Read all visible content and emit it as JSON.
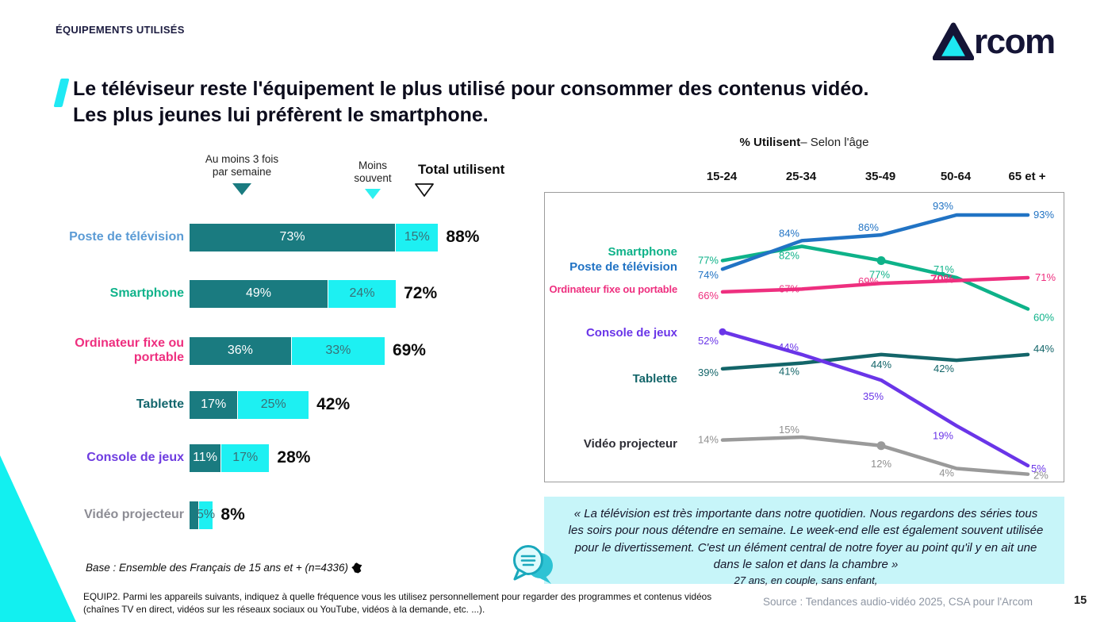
{
  "page": {
    "kicker": "ÉQUIPEMENTS UTILISÉS",
    "logo_text": "Arcom",
    "title_line1": "Le téléviseur reste l'équipement le plus utilisé pour consommer des contenus vidéo.",
    "title_line2": "Les plus jeunes lui préfèrent le smartphone.",
    "base_note": "Base : Ensemble des Français de 15 ans et + (n=4336)",
    "question": "EQUIP2. Parmi les appareils suivants, indiquez à quelle fréquence vous les utilisez personnellement pour regarder des programmes et contenus vidéos (chaînes TV en direct, vidéos sur les réseaux sociaux ou YouTube, vidéos à la demande, etc. ...).",
    "source": "Source :  Tendances audio-vidéo 2025, CSA pour l'Arcom",
    "page_number": "15"
  },
  "colors": {
    "accent_cyan": "#12f0f0",
    "bar_dark_teal": "#1a7b80",
    "bar_cyan": "#1df0f2",
    "navy_text": "#151536",
    "quote_bg": "#c7f5f9"
  },
  "quote": {
    "text": "« La télévision est très importante dans notre quotidien. Nous regardons des séries tous les soirs pour nous détendre en semaine. Le week-end elle est également souvent utilisée pour le divertissement. C'est un élément central de notre foyer au point qu'il y en ait une dans le salon et dans la chambre »",
    "attribution": "27 ans, en couple, sans enfant,"
  },
  "chart_data": [
    {
      "type": "bar",
      "orientation": "horizontal-stacked",
      "legend": {
        "item1_line1": "Au moins 3 fois",
        "item1_line2": "par semaine",
        "item2_line1": "Moins",
        "item2_line2": "souvent",
        "total_label": "Total utilisent"
      },
      "categories": [
        "Poste de télévision",
        "Smartphone",
        "Ordinateur fixe ou portable",
        "Tablette",
        "Console de jeux",
        "Vidéo projecteur"
      ],
      "category_colors": [
        "#5b9bd5",
        "#10b38b",
        "#ee2f7f",
        "#13666d",
        "#6e3ce0",
        "#8c8c94"
      ],
      "series": [
        {
          "name": "Au moins 3 fois par semaine",
          "color": "#1a7b80",
          "values": [
            73,
            49,
            36,
            17,
            11,
            3
          ]
        },
        {
          "name": "Moins souvent",
          "color": "#1df0f2",
          "values": [
            15,
            24,
            33,
            25,
            17,
            5
          ]
        }
      ],
      "totals": [
        88,
        72,
        69,
        42,
        28,
        8
      ],
      "unit": "%"
    },
    {
      "type": "line",
      "title_bold": "% Utilisent",
      "title_rest": "– Selon l'âge",
      "x": [
        "15-24",
        "25-34",
        "35-49",
        "50-64",
        "65 et +"
      ],
      "series": [
        {
          "name": "Poste de télévision",
          "color": "#2173c4",
          "label_color": "#2173c4",
          "values": [
            74,
            84,
            86,
            93,
            93
          ]
        },
        {
          "name": "Smartphone",
          "color": "#0eb289",
          "label_color": "#0eb289",
          "values": [
            77,
            82,
            77,
            71,
            60
          ]
        },
        {
          "name": "Ordinateur fixe ou portable",
          "color": "#ee2f7f",
          "label_color": "#ee2f7f",
          "values": [
            66,
            67,
            69,
            70,
            71
          ]
        },
        {
          "name": "Console de jeux",
          "color": "#6a35e8",
          "label_color": "#6a35e8",
          "values": [
            52,
            44,
            35,
            19,
            5
          ]
        },
        {
          "name": "Tablette",
          "color": "#136569",
          "label_color": "#136569",
          "values": [
            39,
            41,
            44,
            42,
            44
          ]
        },
        {
          "name": "Vidéo projecteur",
          "color": "#9a9a9a",
          "label_color": "#8f8f8f",
          "values": [
            14,
            15,
            12,
            4,
            2
          ]
        }
      ],
      "ylim": [
        0,
        100
      ],
      "grid": false,
      "legend_position": "left-inline",
      "unit": "%"
    }
  ]
}
